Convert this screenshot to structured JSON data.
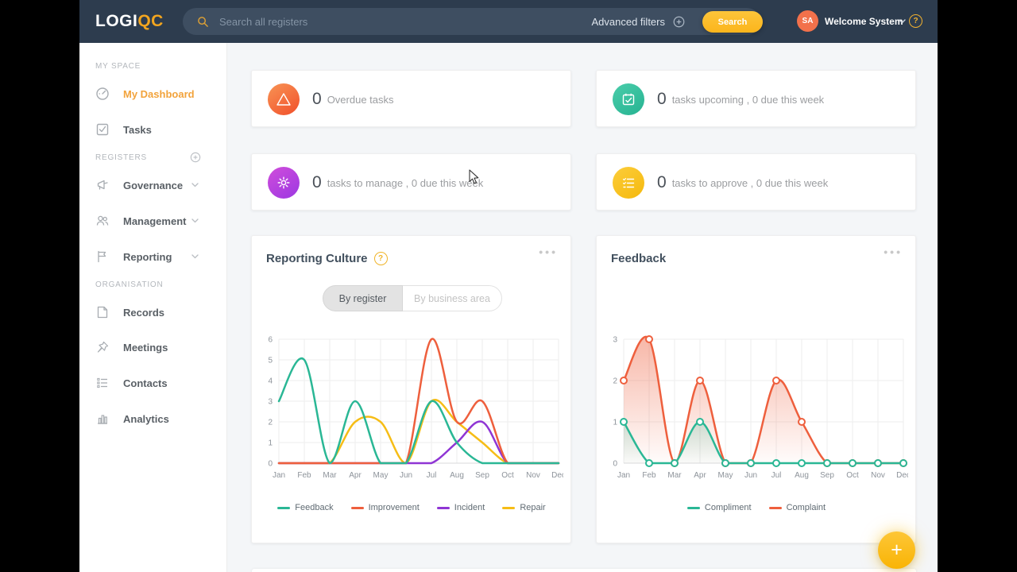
{
  "header": {
    "logo_primary": "LOGI",
    "logo_accent": "QC",
    "search_placeholder": "Search all registers",
    "advanced_filters_label": "Advanced filters",
    "search_button_label": "Search",
    "avatar_initials": "SA",
    "user_menu_label": "Welcome System",
    "help_label": "?"
  },
  "sidebar": {
    "my_space_label": "MY SPACE",
    "registers_label": "REGISTERS",
    "organisation_label": "ORGANISATION",
    "items": [
      {
        "label": "My Dashboard",
        "icon": "dashboard-icon",
        "active": true
      },
      {
        "label": "Tasks",
        "icon": "tasks-icon"
      },
      {
        "label": "Governance",
        "icon": "megaphone-icon",
        "chevron": true
      },
      {
        "label": "Management",
        "icon": "people-icon",
        "chevron": true
      },
      {
        "label": "Reporting",
        "icon": "flag-icon",
        "chevron": true
      },
      {
        "label": "Records",
        "icon": "records-icon"
      },
      {
        "label": "Meetings",
        "icon": "pin-icon"
      },
      {
        "label": "Contacts",
        "icon": "contacts-icon"
      },
      {
        "label": "Analytics",
        "icon": "analytics-icon"
      }
    ]
  },
  "summary_cards": [
    {
      "count": "0",
      "label": "Overdue tasks",
      "icon": "warning-triangle-icon",
      "color_from": "#f89455",
      "color_to": "#f14f2a"
    },
    {
      "count": "0",
      "label": "tasks upcoming , 0 due this week",
      "icon": "calendar-icon",
      "color_from": "#49cdaa",
      "color_to": "#27b392"
    },
    {
      "count": "0",
      "label": "tasks to manage , 0 due this week",
      "icon": "gear-icon",
      "color_from": "#d04ddb",
      "color_to": "#9c38e2"
    },
    {
      "count": "0",
      "label": "tasks to approve , 0 due this week",
      "icon": "checklist-icon",
      "color_from": "#fccd3a",
      "color_to": "#f5b90d"
    }
  ],
  "reporting_culture_card": {
    "title": "Reporting Culture",
    "help_label": "?",
    "menu_label": "•••",
    "toggle": [
      "By register",
      "By business area"
    ]
  },
  "feedback_card": {
    "title": "Feedback",
    "menu_label": "•••"
  },
  "fab_label": "+",
  "accent_colors": {
    "orange": "#f2a33c",
    "header_navy": "#2d3c4e",
    "yellow": "#fcbf27"
  },
  "chart_data": [
    {
      "type": "line",
      "title": "Reporting Culture",
      "categories": [
        "Jan",
        "Feb",
        "Mar",
        "Apr",
        "May",
        "Jun",
        "Jul",
        "Aug",
        "Sep",
        "Oct",
        "Nov",
        "Dec"
      ],
      "ylim": [
        0,
        6
      ],
      "ytick_step": 1,
      "grid": true,
      "legend_position": "bottom",
      "series": [
        {
          "name": "Feedback",
          "color": "#2ab795",
          "values": [
            3,
            5,
            0,
            3,
            0,
            0,
            3,
            1,
            0,
            0,
            0,
            0
          ]
        },
        {
          "name": "Improvement",
          "color": "#ee5f3d",
          "values": [
            0,
            0,
            0,
            0,
            0,
            0,
            6,
            2,
            3,
            0,
            0,
            0
          ]
        },
        {
          "name": "Incident",
          "color": "#8f35d4",
          "values": [
            0,
            0,
            0,
            0,
            0,
            0,
            0,
            1,
            2,
            0,
            0,
            0
          ]
        },
        {
          "name": "Repair",
          "color": "#f6bd16",
          "values": [
            0,
            0,
            0,
            2,
            2,
            0,
            3,
            2,
            1,
            0,
            0,
            0
          ]
        }
      ]
    },
    {
      "type": "area",
      "title": "Feedback",
      "categories": [
        "Jan",
        "Feb",
        "Mar",
        "Apr",
        "May",
        "Jun",
        "Jul",
        "Aug",
        "Sep",
        "Oct",
        "Nov",
        "Dec"
      ],
      "ylim": [
        0,
        3
      ],
      "ytick_step": 1,
      "grid": true,
      "legend_position": "bottom",
      "series": [
        {
          "name": "Compliment",
          "color": "#2ab795",
          "markers": true,
          "fill_gradient": [
            "rgba(42,183,149,0.22)",
            "rgba(42,183,149,0.02)"
          ],
          "values": [
            1,
            0,
            0,
            1,
            0,
            0,
            0,
            0,
            0,
            0,
            0,
            0
          ]
        },
        {
          "name": "Complaint",
          "color": "#ee5f3d",
          "markers": true,
          "fill_gradient": [
            "rgba(238,95,61,0.45)",
            "rgba(238,95,61,0.02)"
          ],
          "values": [
            2,
            3,
            0,
            2,
            0,
            0,
            2,
            1,
            0,
            0,
            0,
            0
          ]
        }
      ]
    }
  ]
}
